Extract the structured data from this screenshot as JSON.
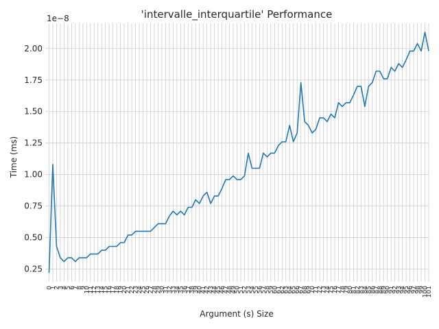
{
  "chart_data": {
    "type": "line",
    "title": "'intervalle_interquartile' Performance",
    "xlabel": "Argument (s) Size",
    "ylabel": "Time (ms)",
    "offset_label": "1e−8",
    "grid": true,
    "ylim": [
      1.5e-09,
      2.2e-08
    ],
    "xlim": [
      -1,
      101
    ],
    "yticks": [
      {
        "value": 2.5e-09,
        "label": "0.25"
      },
      {
        "value": 5e-09,
        "label": "0.50"
      },
      {
        "value": 7.5e-09,
        "label": "0.75"
      },
      {
        "value": 1e-08,
        "label": "1.00"
      },
      {
        "value": 1.25e-08,
        "label": "1.25"
      },
      {
        "value": 1.5e-08,
        "label": "1.50"
      },
      {
        "value": 1.75e-08,
        "label": "1.75"
      },
      {
        "value": 2e-08,
        "label": "2.00"
      }
    ],
    "x": [
      0,
      1,
      2,
      3,
      4,
      5,
      6,
      7,
      8,
      9,
      10,
      11,
      12,
      13,
      14,
      15,
      16,
      17,
      18,
      19,
      20,
      21,
      22,
      23,
      24,
      25,
      26,
      27,
      28,
      29,
      30,
      31,
      32,
      33,
      34,
      35,
      36,
      37,
      38,
      39,
      40,
      41,
      42,
      43,
      44,
      45,
      46,
      47,
      48,
      49,
      50,
      51,
      52,
      53,
      54,
      55,
      56,
      57,
      58,
      59,
      60,
      61,
      62,
      63,
      64,
      65,
      66,
      67,
      68,
      69,
      70,
      71,
      72,
      73,
      74,
      75,
      76,
      77,
      78,
      79,
      80,
      81,
      82,
      83,
      84,
      85,
      86,
      87,
      88,
      89,
      90,
      91,
      92,
      93,
      94,
      95,
      96,
      97,
      98,
      99,
      100,
      101
    ],
    "series": [
      {
        "values": [
          2.2e-09,
          1.08e-08,
          4.3e-09,
          3.4e-09,
          3.1e-09,
          3.4e-09,
          3.4e-09,
          3.1e-09,
          3.4e-09,
          3.4e-09,
          3.4e-09,
          3.7e-09,
          3.7e-09,
          3.7e-09,
          4e-09,
          4e-09,
          4.3e-09,
          4.3e-09,
          4.3e-09,
          4.6e-09,
          4.6e-09,
          5.2e-09,
          5.2e-09,
          5.5e-09,
          5.5e-09,
          5.5e-09,
          5.5e-09,
          5.5e-09,
          5.8e-09,
          6.1e-09,
          6.1e-09,
          6.1e-09,
          6.7e-09,
          7.1e-09,
          6.8e-09,
          7.1e-09,
          6.8e-09,
          7.4e-09,
          7.4e-09,
          8e-09,
          7.7e-09,
          8.3e-09,
          8.6e-09,
          7.7e-09,
          8.3e-09,
          8.3e-09,
          8.9e-09,
          9.6e-09,
          9.6e-09,
          9.9e-09,
          9.6e-09,
          9.6e-09,
          9.9e-09,
          1.17e-08,
          1.05e-08,
          1.05e-08,
          1.05e-08,
          1.17e-08,
          1.14e-08,
          1.17e-08,
          1.17e-08,
          1.23e-08,
          1.26e-08,
          1.26e-08,
          1.39e-08,
          1.26e-08,
          1.33e-08,
          1.73e-08,
          1.42e-08,
          1.39e-08,
          1.33e-08,
          1.36e-08,
          1.45e-08,
          1.45e-08,
          1.42e-08,
          1.48e-08,
          1.45e-08,
          1.57e-08,
          1.54e-08,
          1.57e-08,
          1.57e-08,
          1.63e-08,
          1.7e-08,
          1.7e-08,
          1.54e-08,
          1.7e-08,
          1.73e-08,
          1.82e-08,
          1.82e-08,
          1.76e-08,
          1.76e-08,
          1.85e-08,
          1.82e-08,
          1.88e-08,
          1.85e-08,
          1.91e-08,
          1.98e-08,
          1.98e-08,
          2.04e-08,
          1.98e-08,
          2.13e-08,
          1.98e-08
        ]
      }
    ]
  }
}
